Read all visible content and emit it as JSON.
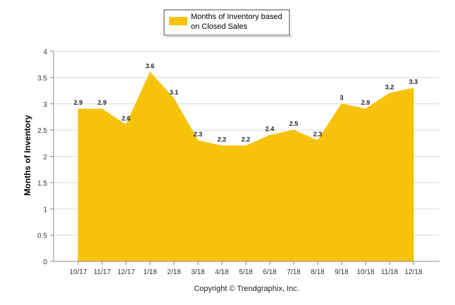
{
  "chart_data": {
    "type": "area",
    "categories": [
      "10/17",
      "11/17",
      "12/17",
      "1/18",
      "2/18",
      "3/18",
      "4/18",
      "5/18",
      "6/18",
      "7/18",
      "8/18",
      "9/18",
      "10/18",
      "11/18",
      "12/18"
    ],
    "series": [
      {
        "name": "Months of Inventory based on Closed Sales",
        "values": [
          2.9,
          2.9,
          2.6,
          3.6,
          3.1,
          2.3,
          2.2,
          2.2,
          2.4,
          2.5,
          2.3,
          3,
          2.9,
          3.2,
          3.3
        ],
        "labels": [
          "2.9",
          "2.9",
          "2.6",
          "3.6",
          "3.1",
          "2.3",
          "2.2",
          "2.2",
          "2.4",
          "2.5",
          "2.3",
          "3",
          "2.9",
          "3.2",
          "3.3"
        ],
        "color": "#F6C30A"
      }
    ],
    "legend": {
      "lines": [
        "Months of Inventory based",
        "on Closed Sales"
      ],
      "position": "top-center"
    },
    "ylabel": "Months of Inventory",
    "xlabel": "",
    "ylim": [
      0,
      4
    ],
    "yticks": [
      "0",
      "0.5",
      "1",
      "1.5",
      "2",
      "2.5",
      "3",
      "3.5",
      "4"
    ],
    "grid": true,
    "footer": "Copyright © Trendgraphix, Inc."
  }
}
